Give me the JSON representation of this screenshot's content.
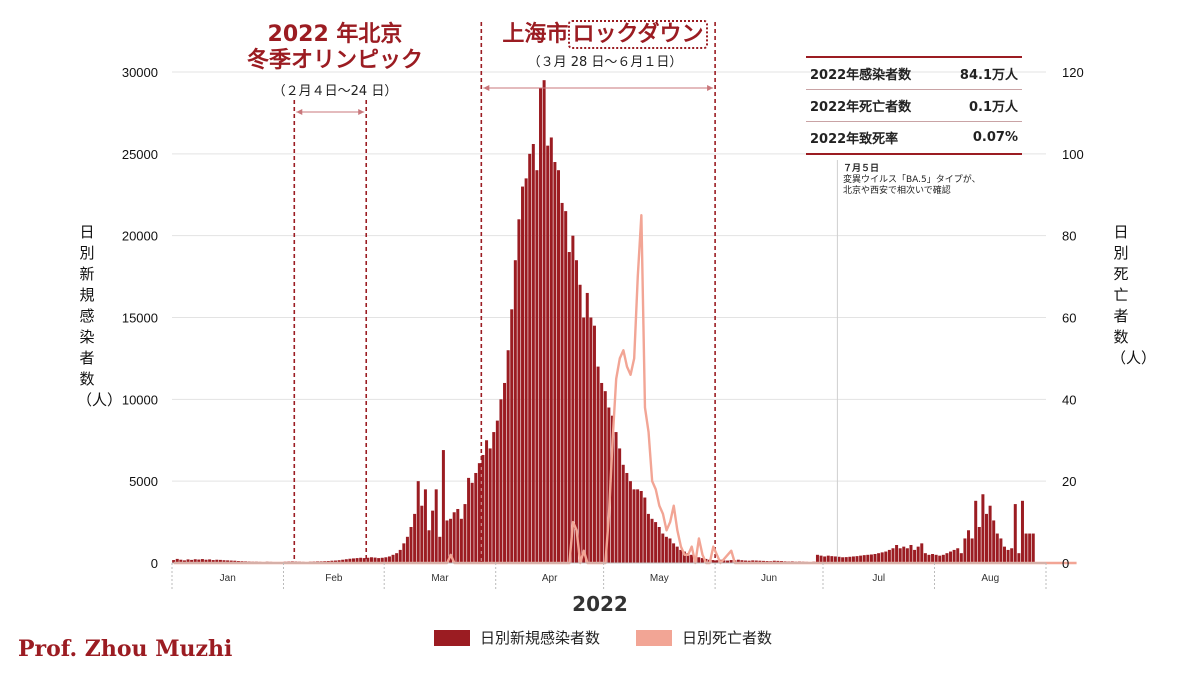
{
  "annotations": {
    "olympics": {
      "line1": "2022 年北京",
      "line2": "冬季オリンピック",
      "dates": "（２月４日～24 日）"
    },
    "lockdown": {
      "prefix": "上海市",
      "boxed": "ロックダウン",
      "dates": "（３月 28 日～６月１日）"
    },
    "ba5": {
      "date": "７月５日",
      "line1": "変異ウイルス「BA.5」タイプが、",
      "line2": "北京や西安で相次いで確認"
    }
  },
  "stats": [
    {
      "label": "2022年感染者数",
      "value": "84.1万人"
    },
    {
      "label": "2022年死亡者数",
      "value": "0.1万人"
    },
    {
      "label": "2022年致死率",
      "value": "0.07%"
    }
  ],
  "legend": {
    "cases": "日別新規感染者数",
    "deaths": "日別死亡者数"
  },
  "credit": "Prof. Zhou Muzhi",
  "colors": {
    "cases": "#9b1c22",
    "deaths": "#f2a595",
    "annotation": "#9b1c22"
  },
  "chart_data": {
    "type": "bar+line",
    "xlabel": "2022",
    "ylabel_left": "日別新規感染者数（人）",
    "ylabel_right": "日別死亡者数（人）",
    "ylim_left": [
      0,
      30000
    ],
    "ylim_right": [
      0,
      120
    ],
    "yticks_left": [
      "0",
      "5000",
      "10000",
      "15000",
      "20000",
      "25000",
      "30000"
    ],
    "yticks_right": [
      "0",
      "20",
      "40",
      "60",
      "80",
      "100",
      "120"
    ],
    "months": [
      "Jan",
      "Feb",
      "Mar",
      "Apr",
      "May",
      "Jun",
      "Jul",
      "Aug"
    ],
    "periods": [
      {
        "name": "olympics",
        "start": "2022-02-04",
        "end": "2022-02-24"
      },
      {
        "name": "lockdown",
        "start": "2022-03-28",
        "end": "2022-06-01"
      }
    ],
    "marker_date": "2022-07-05",
    "start_date": "2022-01-01",
    "series": [
      {
        "name": "日別新規感染者数",
        "type": "bar",
        "axis": "left",
        "values": [
          180,
          250,
          200,
          160,
          220,
          190,
          230,
          210,
          240,
          200,
          220,
          180,
          200,
          190,
          170,
          160,
          150,
          140,
          120,
          110,
          100,
          90,
          80,
          80,
          70,
          60,
          80,
          70,
          60,
          50,
          60,
          80,
          90,
          100,
          90,
          80,
          70,
          60,
          80,
          90,
          100,
          100,
          110,
          120,
          140,
          150,
          170,
          200,
          230,
          260,
          280,
          300,
          320,
          300,
          320,
          350,
          330,
          300,
          320,
          350,
          400,
          500,
          600,
          800,
          1200,
          1600,
          2200,
          3000,
          5000,
          3500,
          4500,
          2000,
          3200,
          4500,
          1600,
          6900,
          2600,
          2700,
          3100,
          3300,
          2700,
          3600,
          5200,
          4900,
          5500,
          6100,
          6600,
          7500,
          7000,
          8000,
          8700,
          10000,
          11000,
          13000,
          15500,
          18500,
          21000,
          23000,
          23500,
          25000,
          25600,
          24000,
          29000,
          29500,
          25500,
          26000,
          24500,
          24000,
          22000,
          21500,
          19000,
          20000,
          18500,
          17000,
          15000,
          16500,
          15000,
          14500,
          12000,
          11000,
          10500,
          9500,
          9000,
          8000,
          7000,
          6000,
          5500,
          5000,
          4500,
          4500,
          4400,
          4000,
          3000,
          2700,
          2500,
          2200,
          1800,
          1600,
          1500,
          1200,
          1000,
          800,
          700,
          600,
          500,
          400,
          350,
          300,
          250,
          200,
          180,
          170,
          200,
          160,
          150,
          180,
          160,
          200,
          170,
          150,
          140,
          160,
          150,
          140,
          130,
          120,
          110,
          140,
          130,
          120,
          100,
          90,
          100,
          80,
          90,
          80,
          70,
          60,
          80,
          500,
          450,
          400,
          450,
          420,
          400,
          380,
          350,
          360,
          380,
          400,
          420,
          450,
          480,
          500,
          520,
          550,
          600,
          650,
          700,
          800,
          900,
          1100,
          900,
          1000,
          900,
          1100,
          800,
          1000,
          1200,
          600,
          500,
          550,
          500,
          450,
          500,
          600,
          700,
          800,
          900,
          600,
          1500,
          2000,
          1500,
          3800,
          2200,
          4200,
          3000,
          3500,
          2600,
          1800,
          1500,
          1000,
          800,
          900,
          3600,
          600,
          3800,
          1800,
          1800,
          1800
        ]
      },
      {
        "name": "日別死亡者数",
        "type": "line",
        "axis": "right",
        "values": [
          0,
          0,
          0,
          0,
          0,
          0,
          0,
          0,
          0,
          0,
          0,
          0,
          0,
          0,
          0,
          0,
          0,
          0,
          0,
          0,
          0,
          0,
          0,
          0,
          0,
          0,
          0,
          0,
          0,
          0,
          0,
          0,
          0,
          0,
          0,
          0,
          0,
          0,
          0,
          0,
          0,
          0,
          0,
          0,
          0,
          0,
          0,
          0,
          0,
          0,
          0,
          0,
          0,
          0,
          0,
          0,
          0,
          0,
          0,
          0,
          0,
          0,
          0,
          0,
          0,
          0,
          0,
          0,
          0,
          0,
          0,
          0,
          0,
          0,
          0,
          0,
          0,
          2,
          0,
          0,
          0,
          0,
          0,
          0,
          0,
          0,
          0,
          0,
          0,
          0,
          0,
          0,
          0,
          0,
          0,
          0,
          0,
          0,
          0,
          0,
          0,
          0,
          0,
          0,
          0,
          0,
          0,
          0,
          0,
          0,
          0,
          10,
          8,
          0,
          3,
          0,
          0,
          0,
          0,
          0,
          0,
          12,
          30,
          45,
          50,
          52,
          48,
          46,
          50,
          70,
          85,
          38,
          32,
          20,
          18,
          14,
          12,
          8,
          10,
          14,
          8,
          4,
          2,
          2,
          4,
          0,
          6,
          2,
          0,
          0,
          4,
          2,
          0,
          1,
          2,
          3,
          0,
          0,
          0,
          0,
          0,
          0,
          0,
          0,
          0,
          0,
          0,
          0,
          0,
          0,
          0,
          0,
          0,
          0,
          0,
          0,
          0,
          0,
          0,
          0,
          0,
          0,
          0,
          0,
          0,
          0,
          0,
          0,
          0,
          0,
          0,
          0,
          0,
          0,
          0,
          0,
          0,
          0,
          0,
          0,
          0,
          0,
          0,
          0,
          0,
          0,
          0,
          0,
          0,
          0,
          0,
          0,
          0,
          0,
          0,
          0,
          0,
          0,
          0,
          0,
          0,
          0,
          0,
          0,
          0,
          0,
          0,
          0,
          0,
          0,
          0,
          0,
          0,
          0,
          0,
          0,
          0,
          0,
          0,
          0,
          0,
          0,
          0,
          0,
          0,
          0,
          0,
          0,
          0,
          0,
          0,
          0
        ]
      }
    ]
  }
}
